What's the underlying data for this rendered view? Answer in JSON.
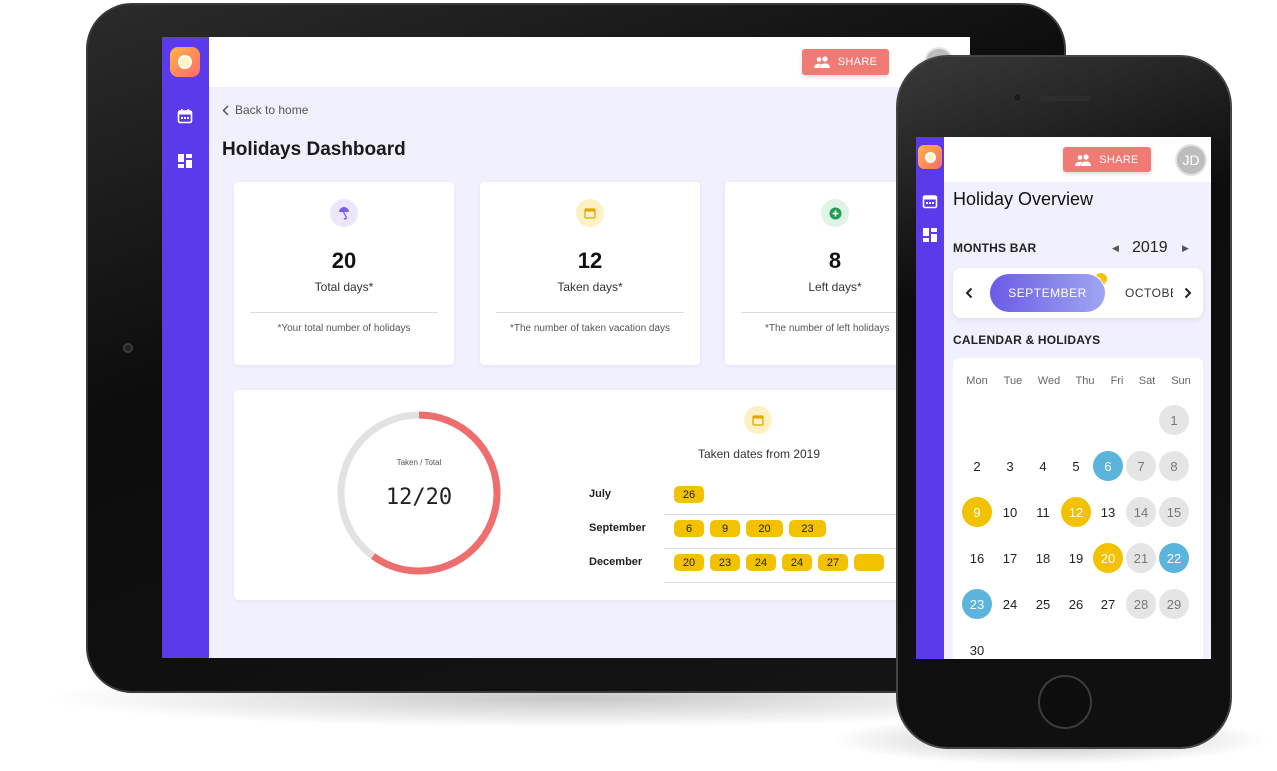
{
  "tablet": {
    "share_label": "SHARE",
    "back_label": "Back to home",
    "title": "Holidays Dashboard",
    "stats": [
      {
        "value": "20",
        "label": "Total days*",
        "note": "*Your total number of holidays",
        "icon": "umbrella-icon",
        "icon_color": "#7b5be8",
        "icon_bg": "#ece7fb"
      },
      {
        "value": "12",
        "label": "Taken days*",
        "note": "*The number of taken vacation days",
        "icon": "calendar-icon",
        "icon_color": "#e0a800",
        "icon_bg": "#fdf1c3"
      },
      {
        "value": "8",
        "label": "Left days*",
        "note": "*The number of left holidays",
        "icon": "plus-circle-icon",
        "icon_color": "#1f9d55",
        "icon_bg": "#dff3e6"
      }
    ],
    "ring": {
      "label": "Taken / Total",
      "value": "12/20",
      "taken": 12,
      "total": 20
    },
    "taken_title": "Taken dates from 2019",
    "taken_months": [
      {
        "name": "July",
        "days": [
          "26"
        ]
      },
      {
        "name": "September",
        "days": [
          "6",
          "9",
          "20",
          "23"
        ]
      },
      {
        "name": "December",
        "days": [
          "20",
          "23",
          "24",
          "24",
          "27"
        ]
      }
    ]
  },
  "phone": {
    "share_label": "SHARE",
    "avatar": "JD",
    "title": "Holiday Overview",
    "months_bar_label": "MONTHS BAR",
    "year": "2019",
    "current_month": "SEPTEMBER",
    "next_month": "OCTOBE",
    "calendar_label": "CALENDAR & HOLIDAYS",
    "weekdays": [
      "Mon",
      "Tue",
      "Wed",
      "Thu",
      "Fri",
      "Sat",
      "Sun"
    ],
    "weeks": [
      [
        "",
        "",
        "",
        "",
        "",
        "",
        "1"
      ],
      [
        "2",
        "3",
        "4",
        "5",
        "6",
        "7",
        "8"
      ],
      [
        "9",
        "10",
        "11",
        "12",
        "13",
        "14",
        "15"
      ],
      [
        "16",
        "17",
        "18",
        "19",
        "20",
        "21",
        "22"
      ],
      [
        "23",
        "24",
        "25",
        "26",
        "27",
        "28",
        "29"
      ],
      [
        "30",
        "",
        "",
        "",
        "",
        "",
        ""
      ]
    ],
    "holiday_days": [
      "9",
      "12",
      "20"
    ],
    "highlight_days": [
      "6",
      "22",
      "23"
    ]
  },
  "colors": {
    "sidebar": "#5b3ae9",
    "share": "#f07a74",
    "chip": "#f2c200",
    "ring_taken": "#ee6e6e",
    "ring_track": "#e2e2e2"
  }
}
